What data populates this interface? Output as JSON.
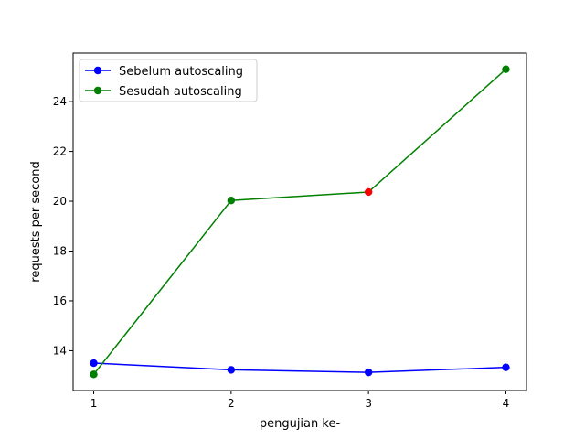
{
  "chart_data": {
    "type": "line",
    "title": "",
    "xlabel": "pengujian ke-",
    "ylabel": "requests per second",
    "x": [
      1,
      2,
      3,
      4
    ],
    "xticks": [
      "1",
      "2",
      "3",
      "4"
    ],
    "yticks": [
      "14",
      "16",
      "18",
      "20",
      "22",
      "24"
    ],
    "xlim": [
      0.85,
      4.15
    ],
    "ylim": [
      12.4,
      25.95
    ],
    "grid": false,
    "legend_position": "upper-left",
    "series": [
      {
        "name": "Sebelum autoscaling",
        "color": "#0000ff",
        "values": [
          13.5,
          13.23,
          13.13,
          13.33
        ]
      },
      {
        "name": "Sesudah autoscaling",
        "color": "#008000",
        "values": [
          13.05,
          20.03,
          20.37,
          25.3
        ],
        "highlight_point_index": 2,
        "highlight_color": "#ff0000"
      }
    ]
  }
}
